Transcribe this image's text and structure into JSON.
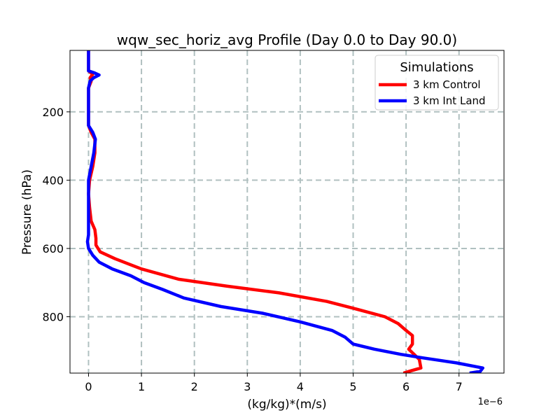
{
  "chart_data": {
    "type": "line",
    "title": "wqw_sec_horiz_avg Profile (Day 0.0 to Day 90.0)",
    "xlabel": "(kg/kg)*(m/s)",
    "ylabel": "Pressure (hPa)",
    "x_offset_label": "1e−6",
    "xlim": [
      -0.35,
      7.85
    ],
    "ylim": [
      965,
      20
    ],
    "x_ticks": [
      0,
      1,
      2,
      3,
      4,
      5,
      6,
      7
    ],
    "y_ticks": [
      200,
      400,
      600,
      800
    ],
    "grid": true,
    "legend": {
      "title": "Simulations",
      "placement": "top-right"
    },
    "series": [
      {
        "name": "3 km Control",
        "color": "#ff0000",
        "points": [
          [
            0.0,
            20
          ],
          [
            0.0,
            60
          ],
          [
            0.0,
            80
          ],
          [
            0.08,
            90
          ],
          [
            0.03,
            100
          ],
          [
            0.05,
            110
          ],
          [
            0.0,
            130
          ],
          [
            0.0,
            200
          ],
          [
            0.0,
            240
          ],
          [
            0.05,
            260
          ],
          [
            0.12,
            280
          ],
          [
            0.12,
            320
          ],
          [
            0.08,
            360
          ],
          [
            0.02,
            400
          ],
          [
            0.0,
            440
          ],
          [
            0.02,
            480
          ],
          [
            0.05,
            520
          ],
          [
            0.12,
            545
          ],
          [
            0.14,
            570
          ],
          [
            0.14,
            590
          ],
          [
            0.22,
            610
          ],
          [
            0.5,
            630
          ],
          [
            1.0,
            660
          ],
          [
            1.7,
            690
          ],
          [
            2.6,
            710
          ],
          [
            3.6,
            730
          ],
          [
            4.5,
            755
          ],
          [
            5.0,
            775
          ],
          [
            5.6,
            800
          ],
          [
            5.85,
            820
          ],
          [
            6.0,
            840
          ],
          [
            6.12,
            855
          ],
          [
            6.12,
            880
          ],
          [
            6.05,
            895
          ],
          [
            6.15,
            910
          ],
          [
            6.25,
            925
          ],
          [
            6.28,
            950
          ],
          [
            6.1,
            958
          ],
          [
            5.95,
            965
          ]
        ]
      },
      {
        "name": "3 km Int Land",
        "color": "#0000ff",
        "points": [
          [
            0.0,
            20
          ],
          [
            0.0,
            60
          ],
          [
            0.0,
            80
          ],
          [
            0.1,
            85
          ],
          [
            0.2,
            92
          ],
          [
            0.1,
            100
          ],
          [
            0.03,
            110
          ],
          [
            0.0,
            130
          ],
          [
            0.0,
            200
          ],
          [
            0.0,
            240
          ],
          [
            0.08,
            260
          ],
          [
            0.13,
            280
          ],
          [
            0.1,
            320
          ],
          [
            0.05,
            360
          ],
          [
            0.0,
            400
          ],
          [
            0.0,
            450
          ],
          [
            0.0,
            500
          ],
          [
            0.0,
            560
          ],
          [
            -0.02,
            580
          ],
          [
            0.0,
            600
          ],
          [
            0.08,
            620
          ],
          [
            0.2,
            640
          ],
          [
            0.45,
            660
          ],
          [
            0.8,
            680
          ],
          [
            1.05,
            700
          ],
          [
            1.4,
            720
          ],
          [
            1.8,
            745
          ],
          [
            2.5,
            770
          ],
          [
            3.3,
            790
          ],
          [
            4.0,
            815
          ],
          [
            4.6,
            840
          ],
          [
            4.85,
            860
          ],
          [
            5.0,
            880
          ],
          [
            5.4,
            895
          ],
          [
            5.9,
            910
          ],
          [
            6.3,
            920
          ],
          [
            6.95,
            935
          ],
          [
            7.45,
            950
          ],
          [
            7.4,
            960
          ],
          [
            7.2,
            965
          ]
        ]
      }
    ]
  }
}
